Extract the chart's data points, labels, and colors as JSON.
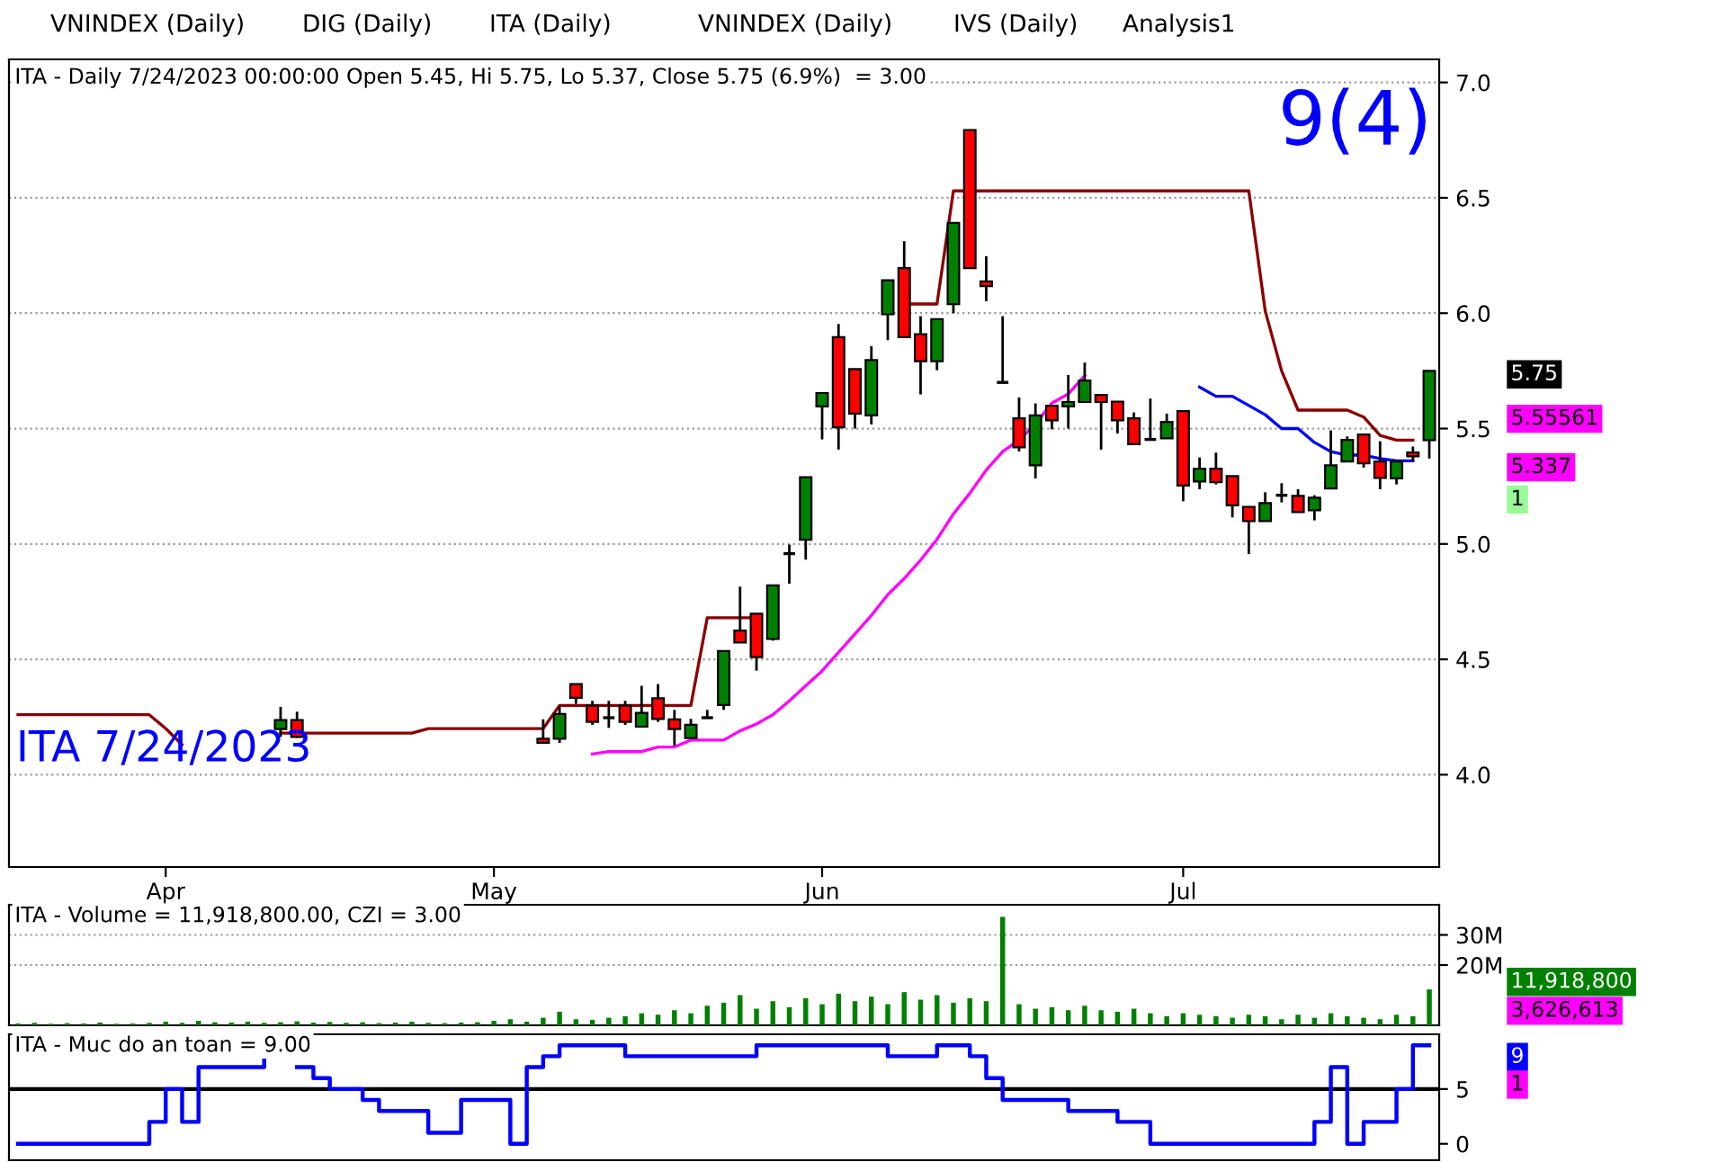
{
  "chart_data": [
    {
      "type": "candlestick",
      "title": "ITA - Daily 7/24/2023 00:00:00 Open 5.45, Hi 5.75, Lo 5.37, Close 5.75 (6.9%)  = 3.00",
      "categories": [
        null,
        null,
        null,
        null,
        null,
        null,
        null,
        null,
        null,
        "Apr",
        null,
        null,
        null,
        null,
        null,
        null,
        null,
        null,
        null,
        null,
        null,
        null,
        null,
        null,
        null,
        null,
        null,
        null,
        null,
        "May",
        null,
        null,
        null,
        null,
        null,
        null,
        null,
        null,
        null,
        null,
        null,
        null,
        null,
        null,
        null,
        null,
        null,
        null,
        null,
        "Jun",
        null,
        null,
        null,
        null,
        null,
        null,
        null,
        null,
        null,
        null,
        null,
        null,
        null,
        null,
        null,
        null,
        null,
        null,
        null,
        null,
        null,
        "Jul",
        null,
        null,
        null,
        null,
        null,
        null,
        null,
        null,
        null,
        null,
        null,
        null,
        null,
        null,
        null
      ],
      "ohlc": [
        null,
        null,
        null,
        null,
        null,
        null,
        null,
        null,
        null,
        null,
        null,
        null,
        null,
        null,
        null,
        null,
        [
          4.198,
          4.294,
          4.164,
          4.237
        ],
        [
          4.237,
          4.273,
          4.16,
          4.164
        ],
        null,
        null,
        null,
        null,
        null,
        null,
        null,
        null,
        null,
        null,
        null,
        null,
        null,
        null,
        [
          4.156,
          4.24,
          4.138,
          4.138
        ],
        [
          4.156,
          4.294,
          4.138,
          4.263
        ],
        [
          4.393,
          4.393,
          4.307,
          4.333
        ],
        [
          4.299,
          4.32,
          4.216,
          4.229
        ],
        [
          4.247,
          4.32,
          4.203,
          4.247
        ],
        [
          4.299,
          4.32,
          4.216,
          4.229
        ],
        [
          4.208,
          4.385,
          4.208,
          4.268
        ],
        [
          4.331,
          4.393,
          4.229,
          4.242
        ],
        [
          4.24,
          4.281,
          4.125,
          4.198
        ],
        [
          4.159,
          4.242,
          4.159,
          4.216
        ],
        [
          4.247,
          4.281,
          4.247,
          4.247
        ],
        [
          4.302,
          4.536,
          4.281,
          4.536
        ],
        [
          4.625,
          4.815,
          4.573,
          4.573
        ],
        [
          4.698,
          4.698,
          4.451,
          4.51
        ],
        [
          4.588,
          4.82,
          4.581,
          4.82
        ],
        [
          4.958,
          4.997,
          4.828,
          4.958
        ],
        [
          5.018,
          5.289,
          4.932,
          5.289
        ],
        [
          5.596,
          5.654,
          5.453,
          5.654
        ],
        [
          5.896,
          5.953,
          5.409,
          5.505
        ],
        [
          5.758,
          5.758,
          5.5,
          5.565
        ],
        [
          5.557,
          5.857,
          5.518,
          5.797
        ],
        [
          5.995,
          6.143,
          5.883,
          6.143
        ],
        [
          6.195,
          6.312,
          5.896,
          5.896
        ],
        [
          5.909,
          5.987,
          5.648,
          5.792
        ],
        [
          5.792,
          5.974,
          5.753,
          5.974
        ],
        [
          6.039,
          6.391,
          6.0,
          6.391
        ],
        [
          6.794,
          6.794,
          6.195,
          6.195
        ],
        [
          6.138,
          6.247,
          6.052,
          6.117
        ],
        [
          5.7,
          5.987,
          5.7,
          5.7
        ],
        [
          5.544,
          5.635,
          5.401,
          5.419
        ],
        [
          5.341,
          5.609,
          5.284,
          5.557
        ],
        [
          5.599,
          5.599,
          5.497,
          5.536
        ],
        [
          5.596,
          5.732,
          5.5,
          5.615
        ],
        [
          5.615,
          5.786,
          5.615,
          5.708
        ],
        [
          5.646,
          5.646,
          5.409,
          5.615
        ],
        [
          5.617,
          5.617,
          5.479,
          5.536
        ],
        [
          5.544,
          5.57,
          5.432,
          5.432
        ],
        [
          5.453,
          5.63,
          5.453,
          5.453
        ],
        [
          5.458,
          5.565,
          5.458,
          5.529
        ],
        [
          5.576,
          5.576,
          5.185,
          5.253
        ],
        [
          5.271,
          5.375,
          5.237,
          5.326
        ],
        [
          5.326,
          5.396,
          5.258,
          5.268
        ],
        [
          5.294,
          5.294,
          5.115,
          5.167
        ],
        [
          5.161,
          5.161,
          4.956,
          5.099
        ],
        [
          5.099,
          5.224,
          5.099,
          5.177
        ],
        [
          5.211,
          5.263,
          5.18,
          5.211
        ],
        [
          5.208,
          5.237,
          5.138,
          5.138
        ],
        [
          5.146,
          5.211,
          5.102,
          5.2
        ],
        [
          5.24,
          5.492,
          5.24,
          5.341
        ],
        [
          5.357,
          5.466,
          5.357,
          5.451
        ],
        [
          5.474,
          5.474,
          5.331,
          5.349
        ],
        [
          5.357,
          5.445,
          5.237,
          5.286
        ],
        [
          5.284,
          5.357,
          5.258,
          5.357
        ],
        [
          5.396,
          5.422,
          5.357,
          5.38
        ],
        [
          5.45,
          5.75,
          5.37,
          5.75
        ]
      ],
      "series": [
        {
          "type": "line",
          "color": "#8b0000",
          "values": [
            4.26,
            4.26,
            4.26,
            4.26,
            4.26,
            4.26,
            4.26,
            4.26,
            4.26,
            4.2,
            4.13,
            null,
            null,
            null,
            null,
            null,
            4.18,
            4.18,
            4.18,
            4.18,
            4.18,
            4.18,
            4.18,
            4.18,
            4.18,
            4.2,
            4.2,
            4.2,
            4.2,
            4.2,
            4.2,
            4.2,
            4.2,
            4.3,
            4.3,
            4.3,
            4.3,
            4.3,
            4.3,
            4.3,
            4.3,
            4.3,
            4.68,
            4.68,
            4.68,
            4.68,
            null,
            null,
            null,
            null,
            null,
            null,
            null,
            null,
            6.04,
            6.04,
            6.04,
            6.53,
            6.53,
            6.53,
            6.53,
            6.53,
            6.53,
            6.53,
            6.53,
            6.53,
            6.53,
            6.53,
            6.53,
            6.53,
            6.53,
            6.53,
            6.53,
            6.53,
            6.53,
            6.53,
            6.01,
            5.75,
            5.58,
            5.58,
            5.58,
            5.58,
            5.55,
            5.47,
            5.45,
            5.45,
            null
          ]
        },
        {
          "type": "line",
          "color": "#ff00ff",
          "values": [
            null,
            null,
            null,
            null,
            null,
            null,
            null,
            null,
            null,
            null,
            null,
            null,
            null,
            null,
            null,
            null,
            null,
            null,
            null,
            null,
            null,
            null,
            null,
            null,
            null,
            null,
            null,
            null,
            null,
            null,
            null,
            null,
            null,
            null,
            null,
            4.09,
            4.1,
            4.1,
            4.1,
            4.12,
            4.12,
            4.15,
            4.15,
            4.15,
            4.19,
            4.22,
            4.26,
            4.32,
            4.385,
            4.45,
            4.53,
            4.61,
            4.69,
            4.78,
            4.85,
            4.93,
            5.02,
            5.13,
            5.22,
            5.32,
            5.4,
            5.45,
            5.52,
            5.61,
            5.65,
            5.73,
            null,
            null,
            null,
            null,
            null,
            null,
            null,
            null,
            null,
            null,
            null,
            null,
            null,
            null,
            null,
            null,
            null,
            null,
            null,
            null,
            null
          ]
        },
        {
          "type": "line",
          "color": "#0000ff",
          "values": [
            null,
            null,
            null,
            null,
            null,
            null,
            null,
            null,
            null,
            null,
            null,
            null,
            null,
            null,
            null,
            null,
            null,
            null,
            null,
            null,
            null,
            null,
            null,
            null,
            null,
            null,
            null,
            null,
            null,
            null,
            null,
            null,
            null,
            null,
            null,
            null,
            null,
            null,
            null,
            null,
            null,
            null,
            null,
            null,
            null,
            null,
            null,
            null,
            null,
            null,
            null,
            null,
            null,
            null,
            null,
            null,
            null,
            null,
            null,
            null,
            null,
            null,
            null,
            null,
            null,
            null,
            null,
            null,
            null,
            null,
            null,
            null,
            5.68,
            5.64,
            5.64,
            5.6,
            5.56,
            5.5,
            5.5,
            5.44,
            5.4,
            5.385,
            5.385,
            5.37,
            5.36,
            5.36,
            null
          ]
        }
      ],
      "ylim": [
        3.6,
        7.1
      ],
      "yticks": [
        {
          "value": 4,
          "label": "4.0"
        },
        4.5,
        {
          "value": 5,
          "label": "5.0"
        },
        5.5,
        {
          "value": 6,
          "label": "6.0"
        },
        6.5,
        {
          "value": 7,
          "label": "7.0"
        }
      ],
      "grid": "y",
      "annotations": [
        "VNINDEX (Daily)",
        "DIG (Daily)",
        "ITA (Daily)",
        "VNINDEX (Daily)",
        "IVS (Daily)",
        "Analysis1",
        "9(4)",
        "ITA 7/24/2023",
        "5.75",
        "5.55561",
        "5.337",
        "1"
      ]
    },
    {
      "type": "bar",
      "title": "ITA - Volume = 11,918,800.00, CZI = 3.00",
      "categories": [
        null,
        null,
        null,
        null,
        null,
        null,
        null,
        null,
        null,
        null,
        null,
        null,
        null,
        null,
        null,
        null,
        null,
        null,
        null,
        null,
        null,
        null,
        null,
        null,
        null,
        null,
        null,
        null,
        null,
        null,
        null,
        null,
        null,
        null,
        null,
        null,
        null,
        null,
        null,
        null,
        null,
        null,
        null,
        null,
        null,
        null,
        null,
        null,
        null,
        null,
        null,
        null,
        null,
        null,
        null,
        null,
        null,
        null,
        null,
        null,
        null,
        null,
        null,
        null,
        null,
        null,
        null,
        null,
        null,
        null,
        null,
        null,
        null,
        null,
        null,
        null,
        null,
        null,
        null,
        null,
        null,
        null,
        null,
        null,
        null,
        null,
        null
      ],
      "series": [
        {
          "color": "#008000",
          "values": [
            0.6,
            0.8,
            0.5,
            0.7,
            0.6,
            0.9,
            0.5,
            0.6,
            0.8,
            1.2,
            0.8,
            1.5,
            1.0,
            0.9,
            1.2,
            0.8,
            1.0,
            1.3,
            0.9,
            1.1,
            0.8,
            1.0,
            0.7,
            0.9,
            1.2,
            0.8,
            0.7,
            0.9,
            1.0,
            1.5,
            2.0,
            1.2,
            2.5,
            4.5,
            2.0,
            1.8,
            2.5,
            3.0,
            4.0,
            3.5,
            5.0,
            4.0,
            6.5,
            7.5,
            10.0,
            5.5,
            8.0,
            6.0,
            9.0,
            7.0,
            10.5,
            8.0,
            9.5,
            7.0,
            11.0,
            8.5,
            10.0,
            7.5,
            9.0,
            8.0,
            36.0,
            7.0,
            5.5,
            6.0,
            5.0,
            6.5,
            5.0,
            4.5,
            5.5,
            4.0,
            3.0,
            4.0,
            3.5,
            3.0,
            2.5,
            3.5,
            3.0,
            2.0,
            3.5,
            2.5,
            4.0,
            3.0,
            2.5,
            2.0,
            3.5,
            3.0,
            11.9
          ]
        }
      ],
      "ylim": [
        0,
        40
      ],
      "yticks": [
        {
          "value": 20,
          "label": "20M"
        },
        {
          "value": 30,
          "label": "30M"
        }
      ],
      "grid": "y",
      "annotations": [
        "11,918,800",
        "3,626,613"
      ]
    },
    {
      "type": "step",
      "title": "ITA - Muc do an toan = 9.00",
      "categories": [
        null,
        null,
        null,
        null,
        null,
        null,
        null,
        null,
        null,
        null,
        null,
        null,
        null,
        null,
        null,
        null,
        null,
        null,
        null,
        null,
        null,
        null,
        null,
        null,
        null,
        null,
        null,
        null,
        null,
        null,
        null,
        null,
        null,
        null,
        null,
        null,
        null,
        null,
        null,
        null,
        null,
        null,
        null,
        null,
        null,
        null,
        null,
        null,
        null,
        null,
        null,
        null,
        null,
        null,
        null,
        null,
        null,
        null,
        null,
        null,
        null,
        null,
        null,
        null,
        null,
        null,
        null,
        null,
        null,
        null,
        null,
        null,
        null,
        null,
        null,
        null,
        null,
        null,
        null,
        null,
        null,
        null,
        null,
        null,
        null,
        null,
        null
      ],
      "series": [
        {
          "color": "#0000ff",
          "values": [
            0,
            0,
            0,
            0,
            0,
            0,
            0,
            0,
            2,
            5,
            2,
            7,
            7,
            7,
            7,
            8,
            null,
            7,
            6,
            5,
            5,
            4,
            3,
            3,
            3,
            1,
            1,
            4,
            4,
            4,
            0,
            7,
            8,
            9,
            9,
            9,
            9,
            8,
            8,
            8,
            8,
            8,
            8,
            8,
            8,
            9,
            9,
            9,
            9,
            9,
            9,
            9,
            9,
            8,
            8,
            8,
            9,
            9,
            8,
            6,
            4,
            4,
            4,
            4,
            3,
            3,
            3,
            2,
            2,
            0,
            0,
            0,
            0,
            0,
            0,
            0,
            0,
            0,
            0,
            2,
            7,
            0,
            2,
            2,
            5,
            9,
            9
          ]
        }
      ],
      "ylim": [
        -1.5,
        10
      ],
      "yticks": [
        0,
        5
      ],
      "ref_lines": [
        {
          "axis": "y",
          "value": 5,
          "color": "#000000"
        }
      ],
      "annotations": [
        "9",
        "1"
      ]
    }
  ]
}
